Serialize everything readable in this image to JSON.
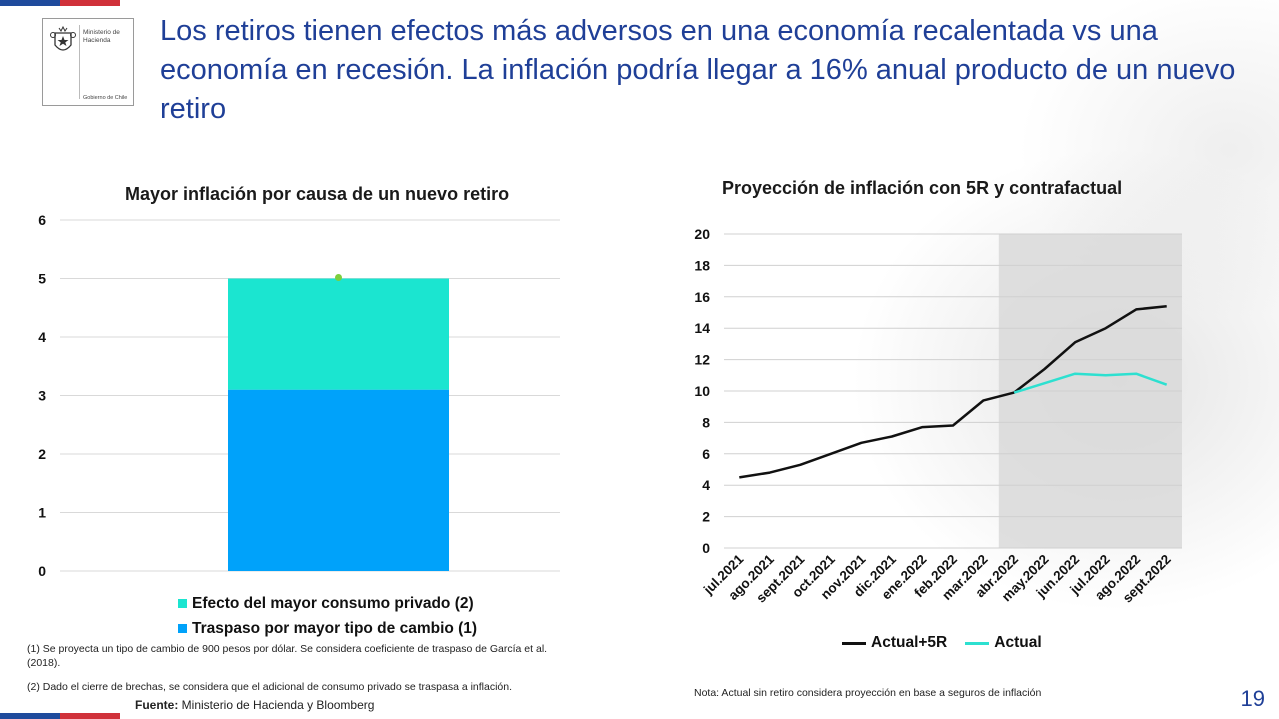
{
  "header": {
    "title": "Los retiros tienen efectos más adversos en una economía recalentada vs una economía en recesión. La inflación podría llegar a 16% anual producto de un nuevo retiro",
    "logo_ministry": "Ministerio de Hacienda",
    "logo_gov": "Gobierno de Chile"
  },
  "colors": {
    "title_blue": "#1f3f97",
    "flag_blue": "#1f4b9c",
    "flag_red": "#d0313a",
    "bar_private": "#1be5d0",
    "bar_exchange": "#00a2fa",
    "line_5r": "#111111",
    "line_actual": "#2de0d0",
    "projection_shade": "#d9d9d9"
  },
  "chart_data": [
    {
      "type": "bar",
      "title": "Mayor inflación por causa de un nuevo retiro",
      "stacked": true,
      "categories": [
        ""
      ],
      "series": [
        {
          "name": "Traspaso por mayor tipo de cambio (1)",
          "values": [
            3.1
          ]
        },
        {
          "name": "Efecto del mayor consumo privado (2)",
          "values": [
            1.9
          ]
        }
      ],
      "total_marker": 5.0,
      "ylim": [
        0,
        6
      ],
      "yticks": [
        0,
        1,
        2,
        3,
        4,
        5,
        6
      ],
      "grid": true,
      "legend": "bottom",
      "legend_order": [
        "Efecto del mayor consumo privado (2)",
        "Traspaso por mayor tipo de cambio (1)"
      ]
    },
    {
      "type": "line",
      "title": "Proyección de inflación con 5R y contrafactual",
      "x": [
        "jul.2021",
        "ago.2021",
        "sept.2021",
        "oct.2021",
        "nov.2021",
        "dic.2021",
        "ene.2022",
        "feb.2022",
        "mar.2022",
        "abr.2022",
        "may.2022",
        "jun.2022",
        "jul.2022",
        "ago.2022",
        "sept.2022"
      ],
      "series": [
        {
          "name": "Actual+5R",
          "values": [
            4.5,
            4.8,
            5.3,
            6.0,
            6.7,
            7.1,
            7.7,
            7.8,
            9.4,
            9.9,
            11.4,
            13.1,
            14.0,
            15.2,
            15.4
          ]
        },
        {
          "name": "Actual",
          "values": [
            null,
            null,
            null,
            null,
            null,
            null,
            null,
            null,
            null,
            9.9,
            10.5,
            11.1,
            11.0,
            11.1,
            10.4
          ]
        }
      ],
      "shaded_region": {
        "from": "abr.2022",
        "to": "sept.2022"
      },
      "ylim": [
        0,
        20
      ],
      "yticks": [
        0,
        2,
        4,
        6,
        8,
        10,
        12,
        14,
        16,
        18,
        20
      ],
      "grid": true,
      "legend": "bottom"
    }
  ],
  "notes": {
    "note1": "(1) Se proyecta un tipo de cambio de 900 pesos por dólar. Se considera coeficiente de traspaso de García et al. (2018).",
    "note2": "(2) Dado el cierre de brechas, se considera que el adicional de consumo privado se traspasa a inflación.",
    "source_label": "Fuente:",
    "source_text": " Ministerio de Hacienda y Bloomberg",
    "nota": "Nota: Actual sin retiro considera proyección en base a seguros de inflación"
  },
  "page_number": "19"
}
